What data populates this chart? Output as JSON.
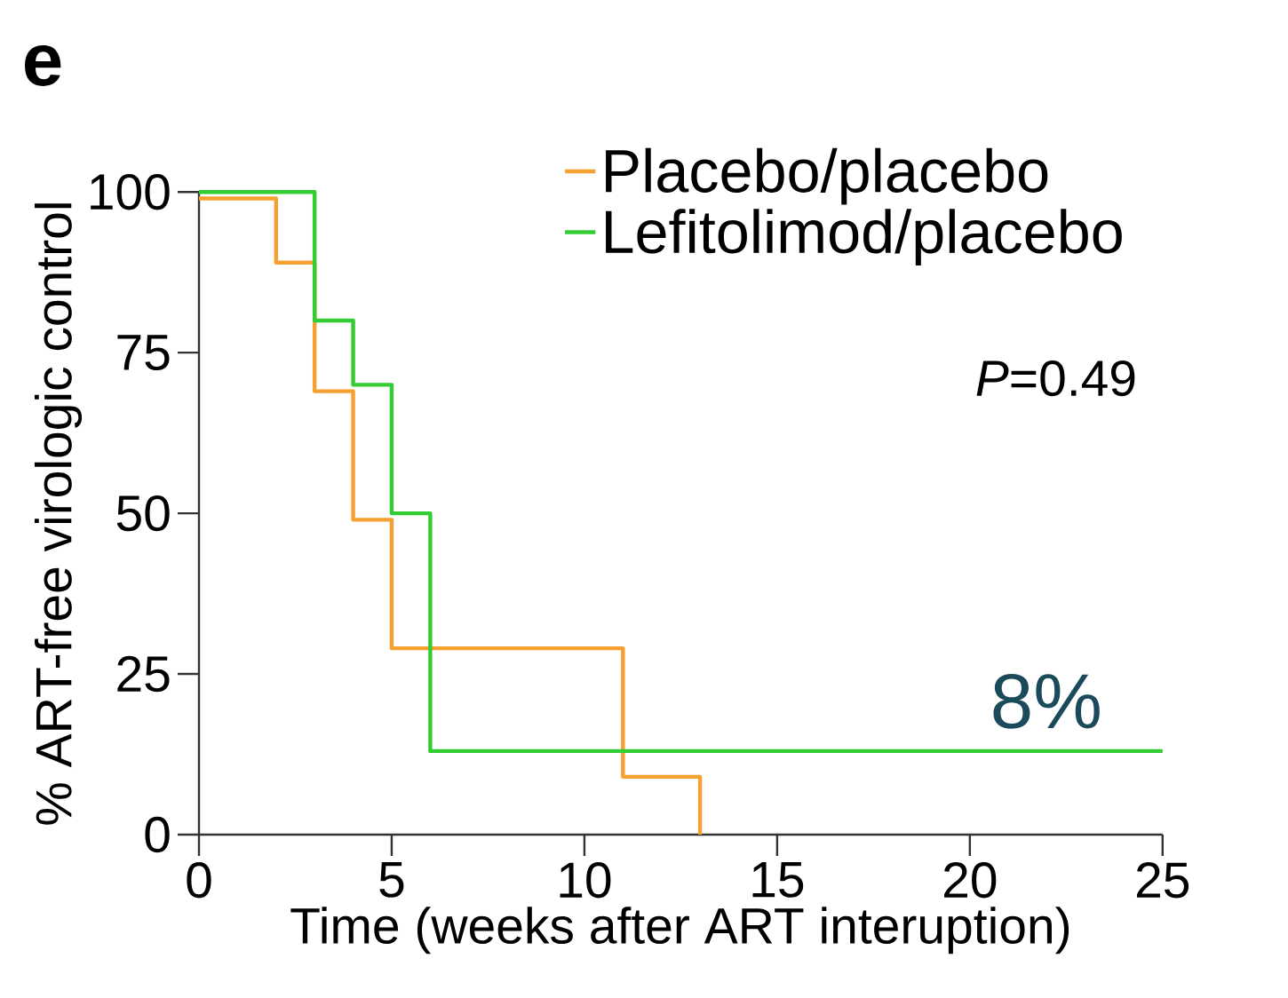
{
  "chart_data": {
    "type": "step",
    "xlabel": "Time (weeks after ART interuption)",
    "ylabel": "% ART-free virologic control",
    "xlim": [
      0,
      25
    ],
    "ylim": [
      0,
      100
    ],
    "xticks": [
      0,
      5,
      10,
      15,
      20,
      25
    ],
    "yticks": [
      0,
      25,
      50,
      75,
      100
    ],
    "series": [
      {
        "name": "Placebo/placebo",
        "color": "#f5a030",
        "x": [
          0,
          2,
          3,
          4,
          5,
          11,
          13
        ],
        "values": [
          99,
          89,
          69,
          49,
          29,
          9,
          0
        ]
      },
      {
        "name": "Lefitolimod/placebo",
        "color": "#33cc33",
        "x": [
          0,
          3,
          4,
          5,
          6,
          25
        ],
        "values": [
          100,
          80,
          70,
          50,
          13,
          13
        ]
      }
    ],
    "legend": "top right",
    "grid": false,
    "annotations": [
      "e",
      "*P*=0.49",
      "8%"
    ]
  }
}
